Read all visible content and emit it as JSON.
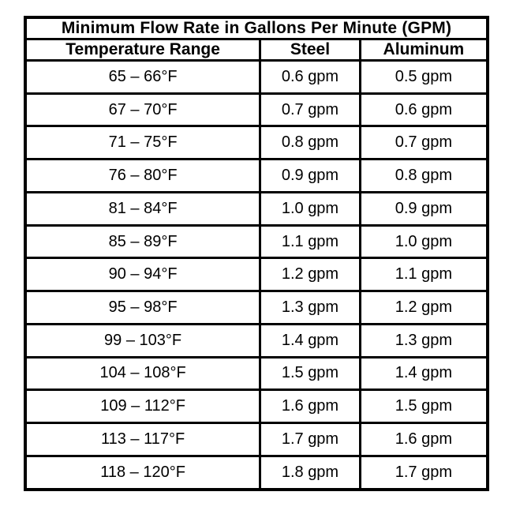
{
  "chart_data": {
    "type": "table",
    "title": "Minimum Flow Rate in Gallons Per Minute (GPM)",
    "columns": [
      "Temperature Range",
      "Steel",
      "Aluminum"
    ],
    "rows": [
      [
        "65 – 66°F",
        "0.6 gpm",
        "0.5 gpm"
      ],
      [
        "67 – 70°F",
        "0.7 gpm",
        "0.6 gpm"
      ],
      [
        "71 – 75°F",
        "0.8 gpm",
        "0.7 gpm"
      ],
      [
        "76 – 80°F",
        "0.9 gpm",
        "0.8 gpm"
      ],
      [
        "81 – 84°F",
        "1.0 gpm",
        "0.9 gpm"
      ],
      [
        "85 – 89°F",
        "1.1 gpm",
        "1.0 gpm"
      ],
      [
        "90 – 94°F",
        "1.2 gpm",
        "1.1 gpm"
      ],
      [
        "95 – 98°F",
        "1.3 gpm",
        "1.2 gpm"
      ],
      [
        "99 – 103°F",
        "1.4 gpm",
        "1.3 gpm"
      ],
      [
        "104 – 108°F",
        "1.5 gpm",
        "1.4 gpm"
      ],
      [
        "109 – 112°F",
        "1.6 gpm",
        "1.5 gpm"
      ],
      [
        "113 – 117°F",
        "1.7 gpm",
        "1.6 gpm"
      ],
      [
        "118 – 120°F",
        "1.8 gpm",
        "1.7 gpm"
      ]
    ],
    "units": "gpm",
    "colors": {
      "border": "#000000",
      "background": "#ffffff",
      "text": "#000000"
    },
    "layout": {
      "grid": "all-borders",
      "title_row_spans_all_columns": true,
      "text_alignment": "center"
    }
  }
}
